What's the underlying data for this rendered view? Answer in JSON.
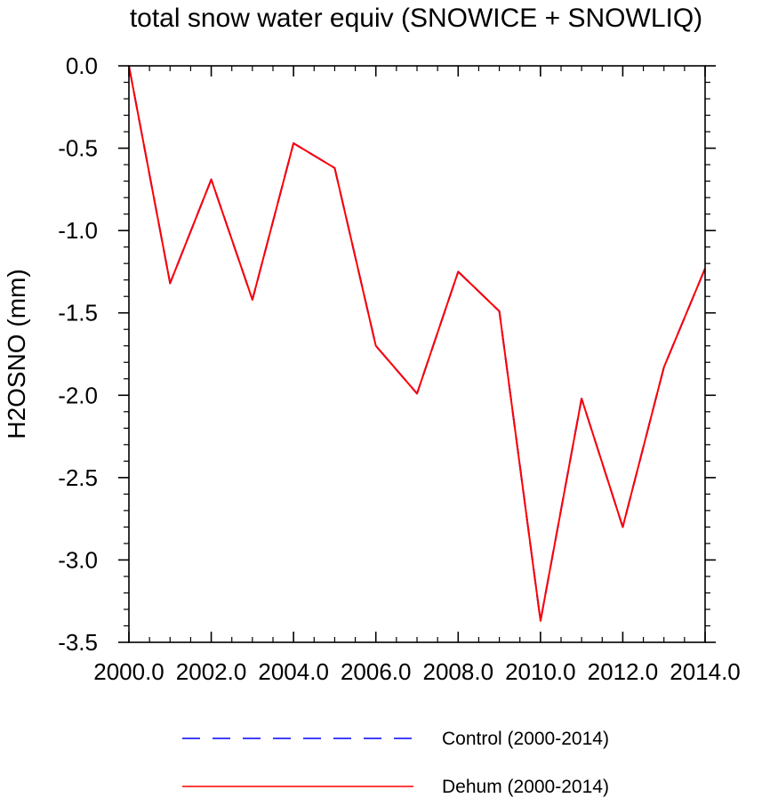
{
  "chart_data": {
    "type": "line",
    "title": "total snow water equiv (SNOWICE + SNOWLIQ)",
    "xlabel": "",
    "ylabel": "H2OSNO  (mm)",
    "xlim": [
      2000.0,
      2014.0
    ],
    "ylim": [
      -3.5,
      0.0
    ],
    "xticks": [
      2000,
      2002,
      2004,
      2006,
      2008,
      2010,
      2012,
      2014
    ],
    "xtick_labels": [
      "2000.0",
      "2002.0",
      "2004.0",
      "2006.0",
      "2008.0",
      "2010.0",
      "2012.0",
      "2014.0"
    ],
    "yticks": [
      0.0,
      -0.5,
      -1.0,
      -1.5,
      -2.0,
      -2.5,
      -3.0,
      -3.5
    ],
    "ytick_labels": [
      "0.0",
      "-0.5",
      "-1.0",
      "-1.5",
      "-2.0",
      "-2.5",
      "-3.0",
      "-3.5"
    ],
    "grid": false,
    "legend_position": "bottom",
    "x": [
      2000,
      2001,
      2002,
      2003,
      2004,
      2005,
      2006,
      2007,
      2008,
      2009,
      2010,
      2011,
      2012,
      2013,
      2014
    ],
    "series": [
      {
        "name": "Control (2000-2014)",
        "color": "#0000ff",
        "line_style": "dashed",
        "values": [
          0.0,
          -1.32,
          -0.69,
          -1.42,
          -0.47,
          -0.62,
          -1.7,
          -1.99,
          -1.25,
          -1.49,
          -3.37,
          -2.02,
          -2.8,
          -1.83,
          -1.23
        ]
      },
      {
        "name": "Dehum (2000-2014)",
        "color": "#ff0000",
        "line_style": "solid",
        "values": [
          0.0,
          -1.32,
          -0.69,
          -1.42,
          -0.47,
          -0.62,
          -1.7,
          -1.99,
          -1.25,
          -1.49,
          -3.37,
          -2.02,
          -2.8,
          -1.83,
          -1.23
        ]
      }
    ]
  }
}
